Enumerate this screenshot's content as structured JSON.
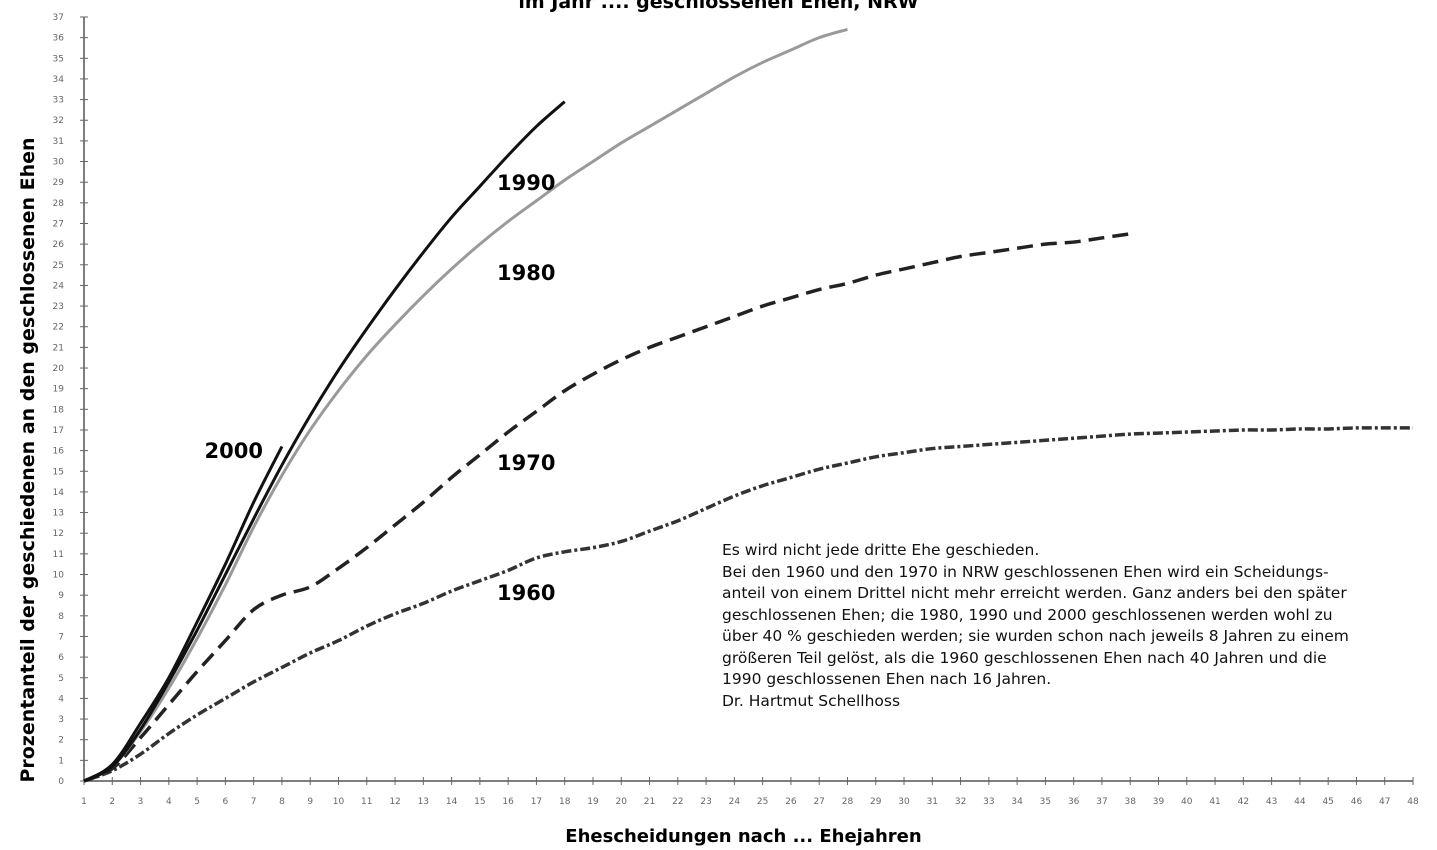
{
  "chart_data": {
    "type": "line",
    "title": "im Jahr .... geschlossenen Ehen, NRW",
    "xlabel": "Ehescheidungen nach ... Ehejahren",
    "ylabel": "Prozentanteil der geschiedenen an den geschlossenen Ehen",
    "xlim": [
      1,
      48
    ],
    "ylim": [
      0,
      37
    ],
    "x_ticks": [
      1,
      2,
      3,
      4,
      5,
      6,
      7,
      8,
      9,
      10,
      11,
      12,
      13,
      14,
      15,
      16,
      17,
      18,
      19,
      20,
      21,
      22,
      23,
      24,
      25,
      26,
      27,
      28,
      29,
      30,
      31,
      32,
      33,
      34,
      35,
      36,
      37,
      38,
      39,
      40,
      41,
      42,
      43,
      44,
      45,
      46,
      47,
      48
    ],
    "y_ticks": [
      0,
      1,
      2,
      3,
      4,
      5,
      6,
      7,
      8,
      9,
      10,
      11,
      12,
      13,
      14,
      15,
      16,
      17,
      18,
      19,
      20,
      21,
      22,
      23,
      24,
      25,
      26,
      27,
      28,
      29,
      30,
      31,
      32,
      33,
      34,
      35,
      36,
      37
    ],
    "grid": false,
    "series": [
      {
        "name": "1960",
        "style": "dotted-dash",
        "color": "#333333",
        "x": [
          1,
          2,
          3,
          4,
          5,
          6,
          7,
          8,
          9,
          10,
          11,
          12,
          13,
          14,
          15,
          16,
          17,
          18,
          19,
          20,
          21,
          22,
          23,
          24,
          25,
          26,
          27,
          28,
          29,
          30,
          31,
          32,
          33,
          34,
          35,
          36,
          37,
          38,
          39,
          40,
          41,
          42,
          43,
          44,
          45,
          46,
          47,
          48
        ],
        "y": [
          0.0,
          0.5,
          1.3,
          2.3,
          3.2,
          4.0,
          4.8,
          5.5,
          6.2,
          6.8,
          7.5,
          8.1,
          8.6,
          9.2,
          9.7,
          10.2,
          10.8,
          11.1,
          11.3,
          11.6,
          12.1,
          12.6,
          13.2,
          13.8,
          14.3,
          14.7,
          15.1,
          15.4,
          15.7,
          15.9,
          16.1,
          16.2,
          16.3,
          16.4,
          16.5,
          16.6,
          16.7,
          16.8,
          16.85,
          16.9,
          16.95,
          17.0,
          17.0,
          17.05,
          17.05,
          17.1,
          17.1,
          17.1
        ]
      },
      {
        "name": "1970",
        "style": "dashed",
        "color": "#222222",
        "x": [
          1,
          2,
          3,
          4,
          5,
          6,
          7,
          8,
          9,
          10,
          11,
          12,
          13,
          14,
          15,
          16,
          17,
          18,
          19,
          20,
          21,
          22,
          23,
          24,
          25,
          26,
          27,
          28,
          29,
          30,
          31,
          32,
          33,
          34,
          35,
          36,
          37,
          38
        ],
        "y": [
          0.0,
          0.6,
          2.1,
          3.7,
          5.3,
          6.8,
          8.3,
          9.0,
          9.4,
          10.3,
          11.3,
          12.4,
          13.5,
          14.7,
          15.8,
          16.9,
          17.9,
          18.9,
          19.7,
          20.4,
          21.0,
          21.5,
          22.0,
          22.5,
          23.0,
          23.4,
          23.8,
          24.1,
          24.5,
          24.8,
          25.1,
          25.4,
          25.6,
          25.8,
          26.0,
          26.1,
          26.3,
          26.5
        ]
      },
      {
        "name": "1980",
        "style": "solid",
        "color": "#9a9a9a",
        "x": [
          1,
          2,
          3,
          4,
          5,
          6,
          7,
          8,
          9,
          10,
          11,
          12,
          13,
          14,
          15,
          16,
          17,
          18,
          19,
          20,
          21,
          22,
          23,
          24,
          25,
          26,
          27,
          28
        ],
        "y": [
          0.0,
          0.7,
          2.4,
          4.5,
          6.9,
          9.5,
          12.3,
          14.8,
          17.0,
          18.9,
          20.6,
          22.1,
          23.5,
          24.8,
          26.0,
          27.1,
          28.1,
          29.1,
          30.0,
          30.9,
          31.7,
          32.5,
          33.3,
          34.1,
          34.8,
          35.4,
          36.0,
          36.4
        ]
      },
      {
        "name": "1990",
        "style": "solid",
        "color": "#111111",
        "x": [
          1,
          2,
          3,
          4,
          5,
          6,
          7,
          8,
          9,
          10,
          11,
          12,
          13,
          14,
          15,
          16,
          17,
          18
        ],
        "y": [
          0.0,
          0.7,
          2.5,
          4.8,
          7.3,
          10.0,
          12.7,
          15.3,
          17.7,
          19.9,
          21.9,
          23.8,
          25.6,
          27.3,
          28.8,
          30.3,
          31.7,
          32.9
        ]
      },
      {
        "name": "2000",
        "style": "solid",
        "color": "#111111",
        "x": [
          1,
          2,
          3,
          4,
          5,
          6,
          7,
          8
        ],
        "y": [
          0.0,
          0.8,
          2.8,
          5.0,
          7.7,
          10.5,
          13.5,
          16.2
        ]
      }
    ]
  },
  "note": {
    "lines": [
      "Es wird nicht jede dritte Ehe geschieden.",
      "Bei den 1960 und den 1970 in NRW geschlossenen Ehen wird ein Scheidungs-",
      "anteil von einem Drittel nicht mehr erreicht werden. Ganz anders bei den später",
      "geschlossenen Ehen; die 1980, 1990 und 2000 geschlossenen werden wohl zu",
      "über 40 % geschieden werden; sie wurden schon nach jeweils 8 Jahren zu einem",
      "größeren Teil gelöst, als die 1960 geschlossenen Ehen nach 40 Jahren und die",
      "1990 geschlossenen Ehen nach 16 Jahren.",
      "Dr. Hartmut Schellhoss"
    ]
  }
}
